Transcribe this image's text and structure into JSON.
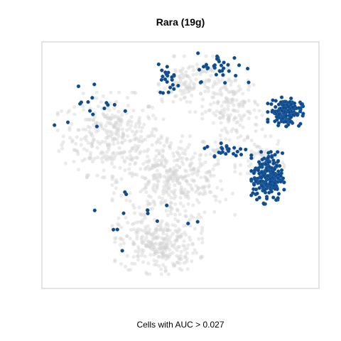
{
  "chart_data": {
    "type": "scatter",
    "title": "Rara (19g)",
    "caption": "Cells with AUC > 0.027",
    "xlabel": "",
    "ylabel": "",
    "grid": false,
    "axes_visible": false,
    "colors": {
      "background_cells": "#d3d3d3",
      "highlighted_cells": "#0e4a8a",
      "highlighted_edge": "#2f6cae",
      "panel_border": "#c8c8c8"
    },
    "series": [
      {
        "name": "",
        "role": "highlighted",
        "clusters": [
          {
            "x": [
              0.82,
              0.95
            ],
            "y": [
              0.66,
              0.78
            ],
            "count": 140
          },
          {
            "x": [
              0.76,
              0.88
            ],
            "y": [
              0.34,
              0.56
            ],
            "count": 210
          },
          {
            "x": [
              0.58,
              0.76
            ],
            "y": [
              0.52,
              0.6
            ],
            "count": 24
          },
          {
            "x": [
              0.55,
              0.75
            ],
            "y": [
              0.84,
              0.97
            ],
            "count": 34
          },
          {
            "x": [
              0.42,
              0.5
            ],
            "y": [
              0.78,
              0.92
            ],
            "count": 22
          },
          {
            "x": [
              0.0,
              0.35
            ],
            "y": [
              0.63,
              0.86
            ],
            "count": 16
          },
          {
            "x": [
              0.1,
              0.62
            ],
            "y": [
              0.1,
              0.46
            ],
            "count": 14
          }
        ]
      },
      {
        "name": "",
        "role": "background",
        "clusters": [
          {
            "x": [
              0.05,
              0.45
            ],
            "y": [
              0.45,
              0.8
            ],
            "count": 320
          },
          {
            "x": [
              0.25,
              0.7
            ],
            "y": [
              0.25,
              0.62
            ],
            "count": 380
          },
          {
            "x": [
              0.26,
              0.58
            ],
            "y": [
              0.05,
              0.3
            ],
            "count": 300
          },
          {
            "x": [
              0.58,
              0.8
            ],
            "y": [
              0.56,
              0.9
            ],
            "count": 170
          },
          {
            "x": [
              0.42,
              0.65
            ],
            "y": [
              0.72,
              0.95
            ],
            "count": 120
          },
          {
            "x": [
              0.72,
              0.88
            ],
            "y": [
              0.4,
              0.62
            ],
            "count": 90
          }
        ]
      }
    ]
  }
}
